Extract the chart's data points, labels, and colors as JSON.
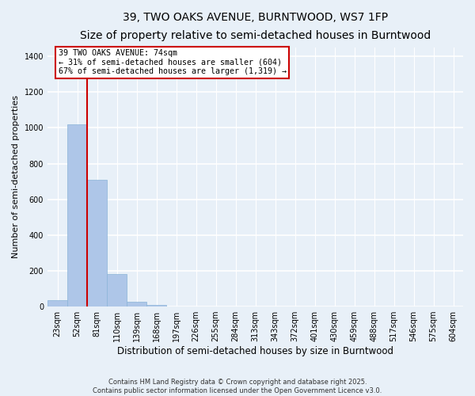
{
  "title1": "39, TWO OAKS AVENUE, BURNTWOOD, WS7 1FP",
  "title2": "Size of property relative to semi-detached houses in Burntwood",
  "xlabel": "Distribution of semi-detached houses by size in Burntwood",
  "ylabel": "Number of semi-detached properties",
  "categories": [
    "23sqm",
    "52sqm",
    "81sqm",
    "110sqm",
    "139sqm",
    "168sqm",
    "197sqm",
    "226sqm",
    "255sqm",
    "284sqm",
    "313sqm",
    "343sqm",
    "372sqm",
    "401sqm",
    "430sqm",
    "459sqm",
    "488sqm",
    "517sqm",
    "546sqm",
    "575sqm",
    "604sqm"
  ],
  "values": [
    35,
    1020,
    710,
    180,
    28,
    10,
    0,
    0,
    0,
    0,
    0,
    0,
    0,
    0,
    0,
    0,
    0,
    0,
    0,
    0,
    0
  ],
  "bar_color": "#aec6e8",
  "bar_edge_color": "#8ab4d8",
  "subject_line_color": "#cc0000",
  "annotation_text": "39 TWO OAKS AVENUE: 74sqm\n← 31% of semi-detached houses are smaller (604)\n67% of semi-detached houses are larger (1,319) →",
  "annotation_box_color": "#cc0000",
  "ylim": [
    0,
    1450
  ],
  "yticks": [
    0,
    200,
    400,
    600,
    800,
    1000,
    1200,
    1400
  ],
  "footer": "Contains HM Land Registry data © Crown copyright and database right 2025.\nContains public sector information licensed under the Open Government Licence v3.0.",
  "bg_color": "#e8f0f8",
  "plot_bg": "#e8f0f8",
  "grid_color": "#ffffff",
  "title_fontsize": 10,
  "subtitle_fontsize": 8.5,
  "tick_fontsize": 7,
  "xlabel_fontsize": 8.5,
  "ylabel_fontsize": 8
}
